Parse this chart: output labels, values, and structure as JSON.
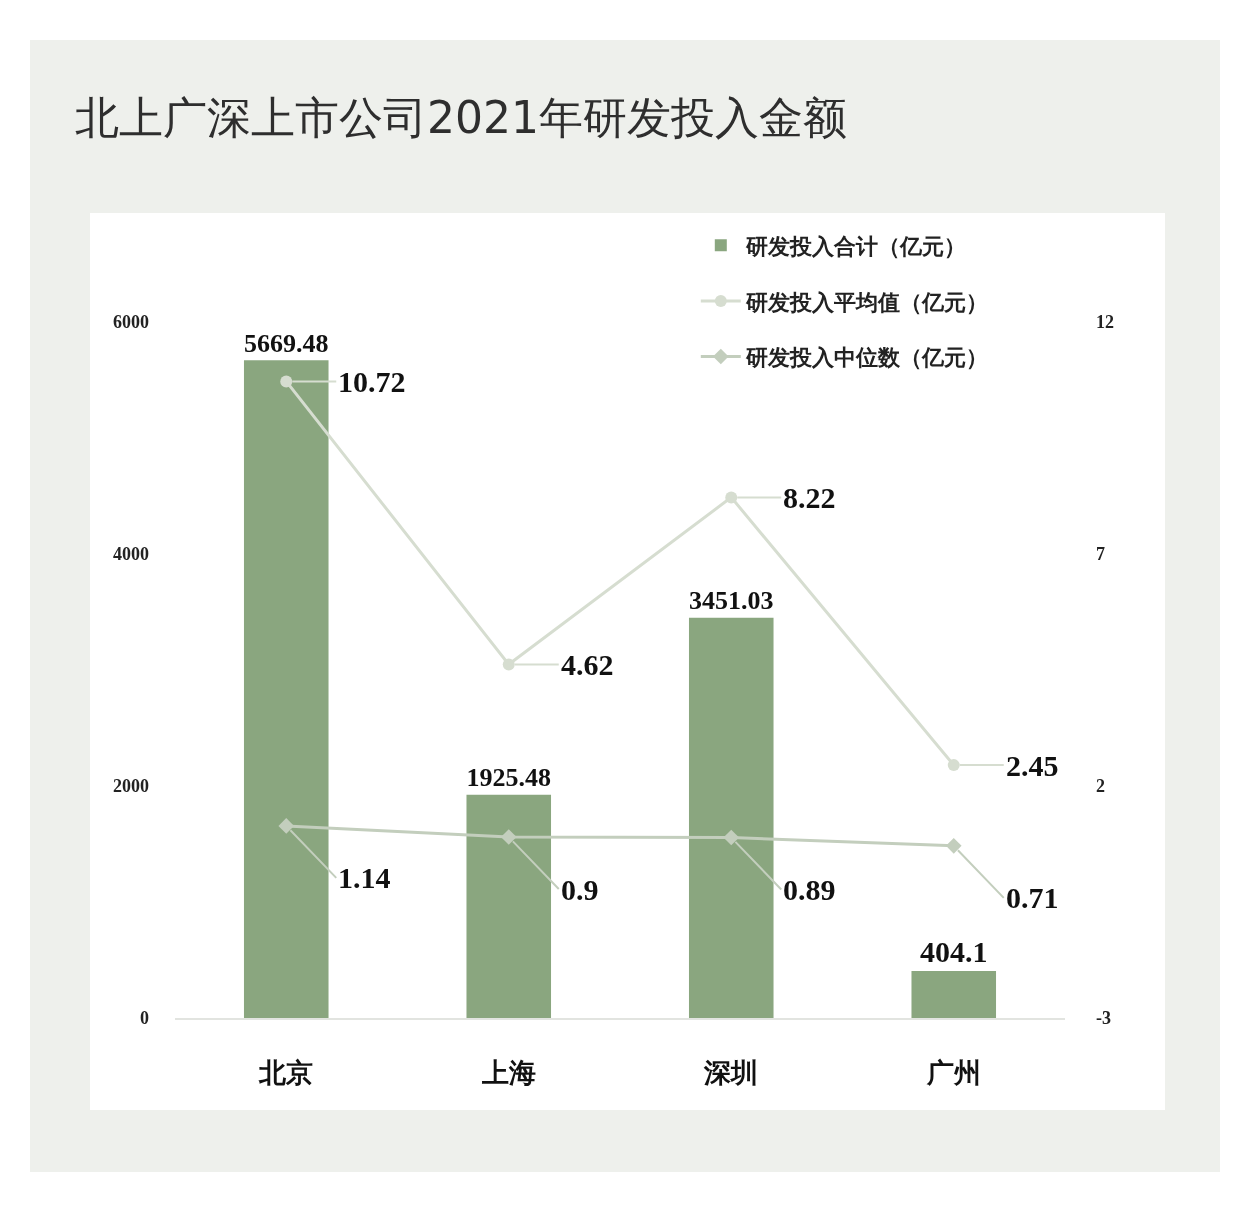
{
  "chart_data": {
    "type": "bar",
    "title": "北上广深上市公司2021年研发投入金额",
    "categories": [
      "北京",
      "上海",
      "深圳",
      "广州"
    ],
    "series": [
      {
        "name": "研发投入合计（亿元）",
        "color": "#8aa67f",
        "values": [
          5669.48,
          1925.48,
          3451.03,
          404.1
        ]
      },
      {
        "name": "研发投入平均值（亿元）",
        "type": "line",
        "axis": "y2",
        "color": "#d6ddd0",
        "marker": "circle",
        "values": [
          10.72,
          4.62,
          8.22,
          2.45
        ]
      },
      {
        "name": "研发投入中位数（亿元）",
        "type": "line",
        "axis": "y2",
        "color": "#c3cebd",
        "marker": "diamond",
        "values": [
          1.14,
          0.9,
          0.89,
          0.71
        ]
      }
    ],
    "ylim": [
      0,
      6000
    ],
    "yticks": [
      0,
      2000,
      4000,
      6000
    ],
    "y2lim": [
      -3,
      12
    ],
    "y2ticks": [
      -3,
      2,
      7,
      12
    ],
    "data_labels": true,
    "legend": "top right"
  }
}
